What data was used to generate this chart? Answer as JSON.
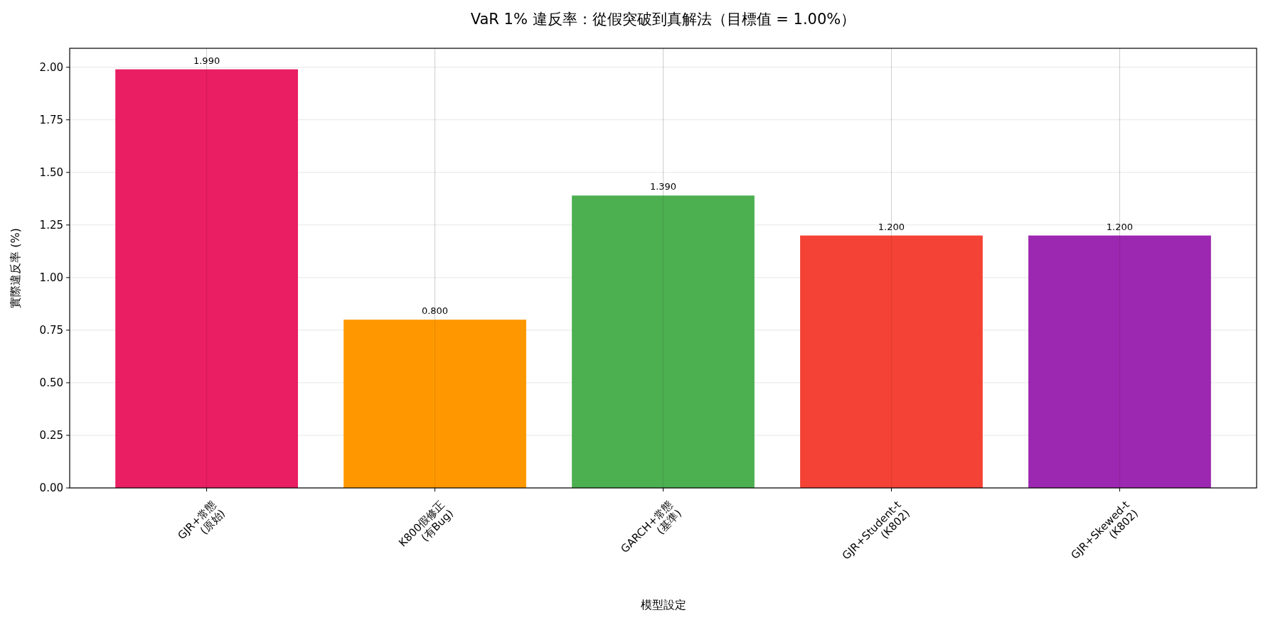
{
  "chart_data": {
    "type": "bar",
    "title": "VaR 1% 違反率：從假突破到真解法（目標值 = 1.00%）",
    "xlabel": "模型設定",
    "ylabel": "實際違反率 (%)",
    "categories": [
      "GJR+常態\n(原始)",
      "K800假修正\n(有Bug)",
      "GARCH+常態\n(基準)",
      "GJR+Student-t\n(K802)",
      "GJR+Skewed-t\n(K802)"
    ],
    "values": [
      1.99,
      0.8,
      1.39,
      1.2,
      1.2
    ],
    "colors": [
      "#e91e63",
      "#ff9800",
      "#4caf50",
      "#f44336",
      "#9c27b0"
    ],
    "value_labels": [
      "1.990",
      "0.800",
      "1.390",
      "1.200",
      "1.200"
    ],
    "ylim": [
      0,
      2.09
    ],
    "yticks": [
      {
        "value": 0,
        "label": "0.00"
      },
      {
        "value": 0.25,
        "label": "0.25"
      },
      {
        "value": 0.5,
        "label": "0.50"
      },
      {
        "value": 0.75,
        "label": "0.75"
      },
      {
        "value": 1,
        "label": "1.00"
      },
      {
        "value": 1.25,
        "label": "1.25"
      },
      {
        "value": 1.5,
        "label": "1.50"
      },
      {
        "value": 1.75,
        "label": "1.75"
      },
      {
        "value": 2,
        "label": "2.00"
      }
    ],
    "grid": true
  }
}
